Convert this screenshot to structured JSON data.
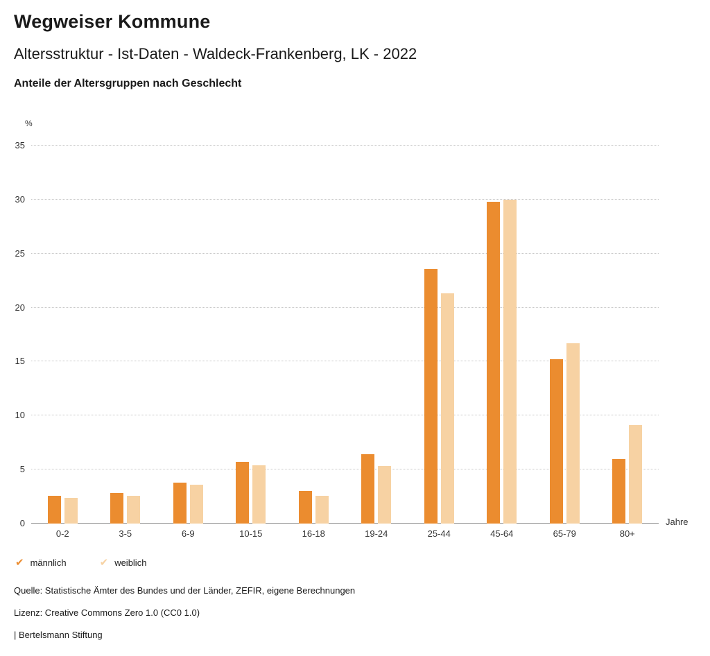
{
  "header": {
    "title": "Wegweiser Kommune",
    "subtitle": "Altersstruktur - Ist-Daten - Waldeck-Frankenberg, LK - 2022",
    "subsubtitle": "Anteile der Altersgruppen nach Geschlecht"
  },
  "chart_data": {
    "type": "bar",
    "title": "Anteile der Altersgruppen nach Geschlecht",
    "categories": [
      "0-2",
      "3-5",
      "6-9",
      "10-15",
      "16-18",
      "19-24",
      "25-44",
      "45-64",
      "65-79",
      "80+"
    ],
    "series": [
      {
        "name": "männlich",
        "color": "#EB8C2F",
        "values": [
          2.6,
          2.8,
          3.8,
          5.7,
          3.0,
          6.4,
          23.6,
          29.8,
          15.2,
          6.0
        ]
      },
      {
        "name": "weiblich",
        "color": "#F7D2A3",
        "values": [
          2.4,
          2.6,
          3.6,
          5.4,
          2.6,
          5.3,
          21.3,
          30.0,
          16.7,
          9.1
        ]
      }
    ],
    "ylabel": "%",
    "xlabel": "Jahre",
    "ylim": [
      0,
      35
    ],
    "yticks": [
      0,
      5,
      10,
      15,
      20,
      25,
      30,
      35
    ],
    "grid": true,
    "legend_position": "bottom-left"
  },
  "legend": {
    "items": [
      {
        "label": "männlich",
        "color": "#EB8C2F"
      },
      {
        "label": "weiblich",
        "color": "#F7D2A3"
      }
    ],
    "check_glyph": "✔"
  },
  "footer": {
    "source": "Quelle: Statistische Ämter des Bundes und der Länder, ZEFIR, eigene Berechnungen",
    "license": "Lizenz: Creative Commons Zero 1.0 (CC0 1.0)",
    "attribution": "| Bertelsmann Stiftung"
  }
}
